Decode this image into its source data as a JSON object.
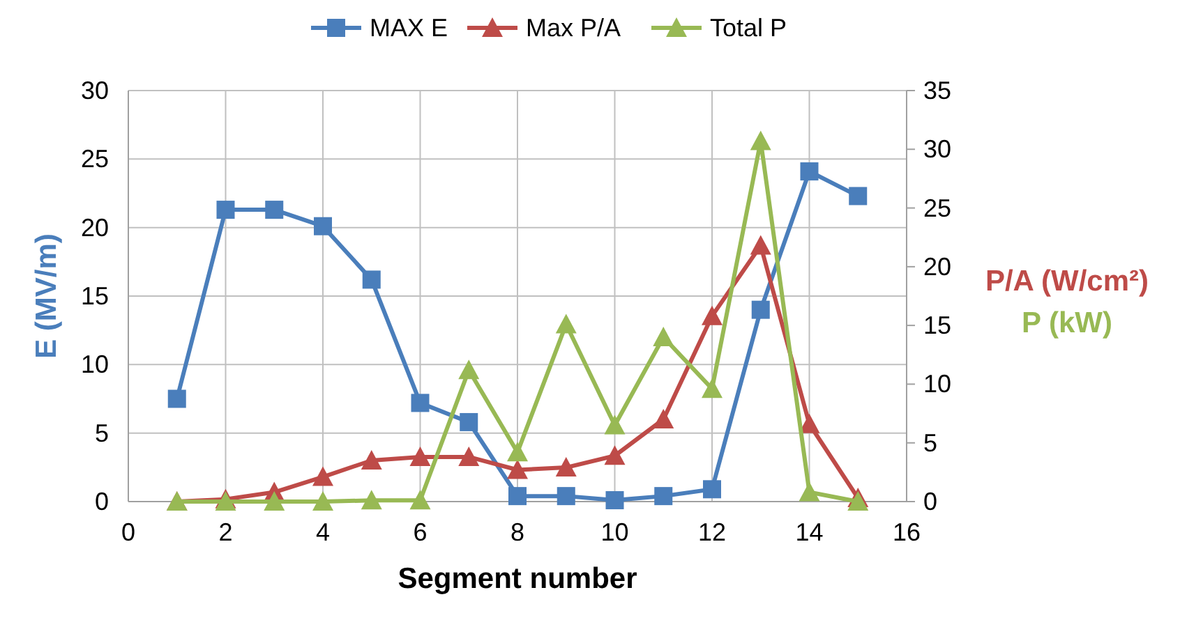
{
  "chart_data": {
    "type": "line",
    "xlabel": "Segment number",
    "ylabel": "E (MV/m)",
    "y2label": "P/A (W/cm²)\nP (kW)",
    "xlim": [
      0,
      16
    ],
    "xticks": [
      0,
      2,
      4,
      6,
      8,
      10,
      12,
      14,
      16
    ],
    "ylim": [
      0,
      30
    ],
    "yticks": [
      0,
      5,
      10,
      15,
      20,
      25,
      30
    ],
    "y2lim": [
      0,
      35
    ],
    "y2ticks": [
      0,
      5,
      10,
      15,
      20,
      25,
      30,
      35
    ],
    "grid": true,
    "legend": "top",
    "x": [
      1,
      2,
      3,
      4,
      5,
      6,
      7,
      8,
      9,
      10,
      11,
      12,
      13,
      14,
      15
    ],
    "series": [
      {
        "name": "MAX E",
        "color": "#4a7ebb",
        "marker": "square",
        "values": [
          7.5,
          21.3,
          21.3,
          20.1,
          16.2,
          7.2,
          5.8,
          0.4,
          0.4,
          0.1,
          0.4,
          0.9,
          14.0,
          24.1,
          22.3
        ]
      },
      {
        "name": "Max P/A",
        "color": "#be4b48",
        "marker": "triangle",
        "axis": "y2",
        "values": [
          0,
          0.2,
          0.8,
          2.1,
          3.5,
          3.8,
          3.8,
          2.7,
          2.9,
          3.9,
          7.0,
          15.8,
          21.8,
          6.6,
          0.3
        ]
      },
      {
        "name": "Total P",
        "color": "#98b954",
        "marker": "triangle",
        "axis": "y2",
        "values": [
          0,
          0,
          0,
          0,
          0.1,
          0.1,
          11.2,
          4.2,
          15.1,
          6.5,
          14.0,
          9.6,
          30.7,
          0.8,
          0
        ]
      }
    ]
  }
}
